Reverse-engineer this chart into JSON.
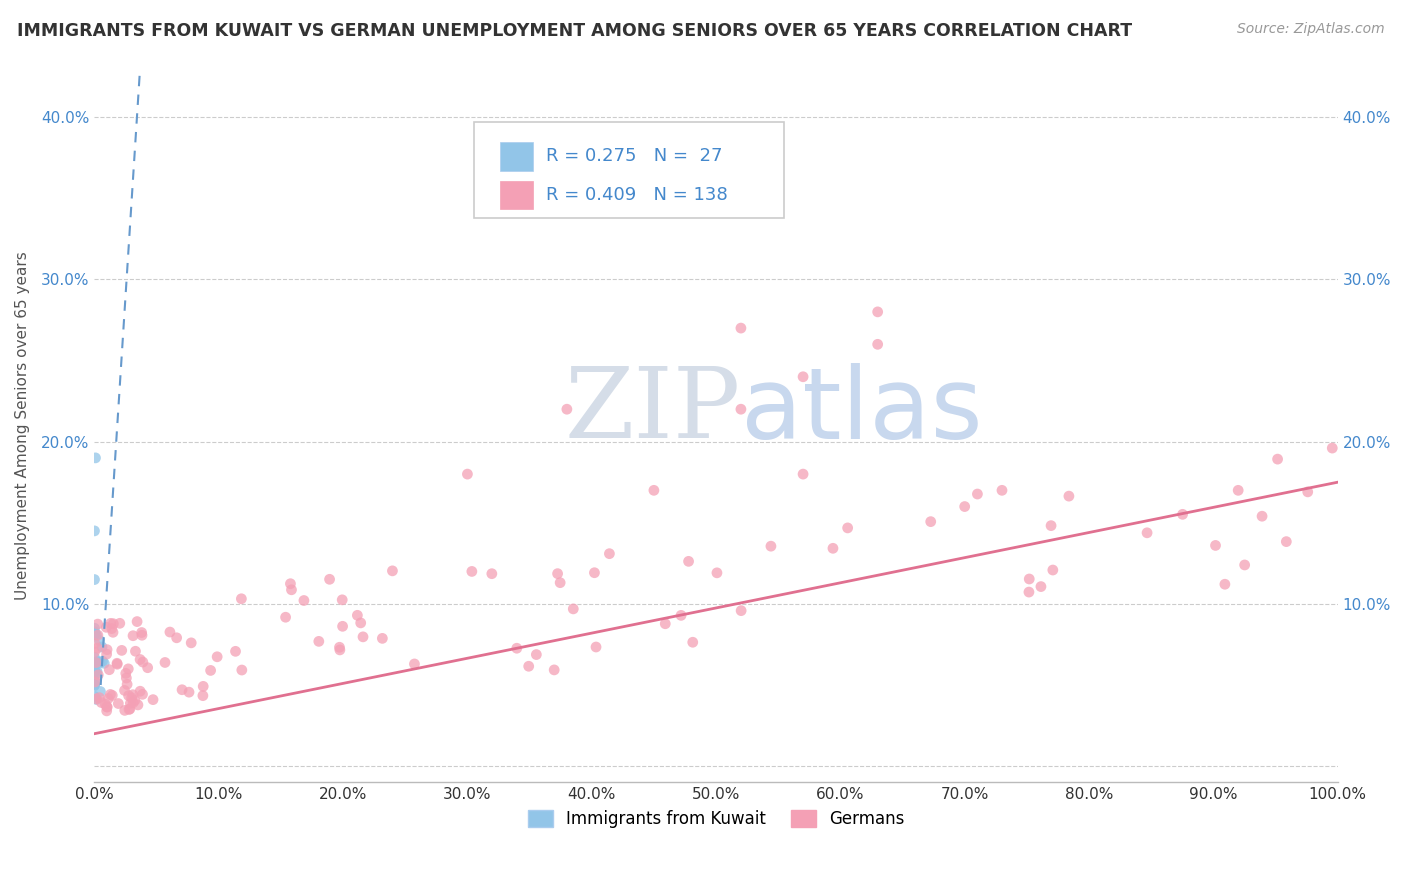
{
  "title": "IMMIGRANTS FROM KUWAIT VS GERMAN UNEMPLOYMENT AMONG SENIORS OVER 65 YEARS CORRELATION CHART",
  "source": "Source: ZipAtlas.com",
  "ylabel": "Unemployment Among Seniors over 65 years",
  "xlim": [
    0.0,
    1.0
  ],
  "ylim": [
    -0.01,
    0.43
  ],
  "xticks": [
    0.0,
    0.1,
    0.2,
    0.3,
    0.4,
    0.5,
    0.6,
    0.7,
    0.8,
    0.9,
    1.0
  ],
  "xticklabels": [
    "0.0%",
    "10.0%",
    "20.0%",
    "30.0%",
    "40.0%",
    "50.0%",
    "60.0%",
    "70.0%",
    "80.0%",
    "90.0%",
    "100.0%"
  ],
  "yticks": [
    0.0,
    0.1,
    0.2,
    0.3,
    0.4
  ],
  "yticklabels": [
    "",
    "10.0%",
    "20.0%",
    "30.0%",
    "40.0%"
  ],
  "legend_r1": "R = 0.275",
  "legend_n1": "N =  27",
  "legend_r2": "R = 0.409",
  "legend_n2": "N = 138",
  "color_blue": "#92C5E8",
  "color_pink": "#F4A0B5",
  "trendline_blue_color": "#6699CC",
  "trendline_pink_color": "#E07090",
  "legend_text_color": "#4488CC",
  "watermark_zip_color": "#D5DDE8",
  "watermark_atlas_color": "#C8D8EE",
  "background_color": "#FFFFFF",
  "grid_color": "#CCCCCC",
  "blue_m": 12.0,
  "blue_b": -0.01,
  "pink_m": 0.155,
  "pink_b": 0.02
}
